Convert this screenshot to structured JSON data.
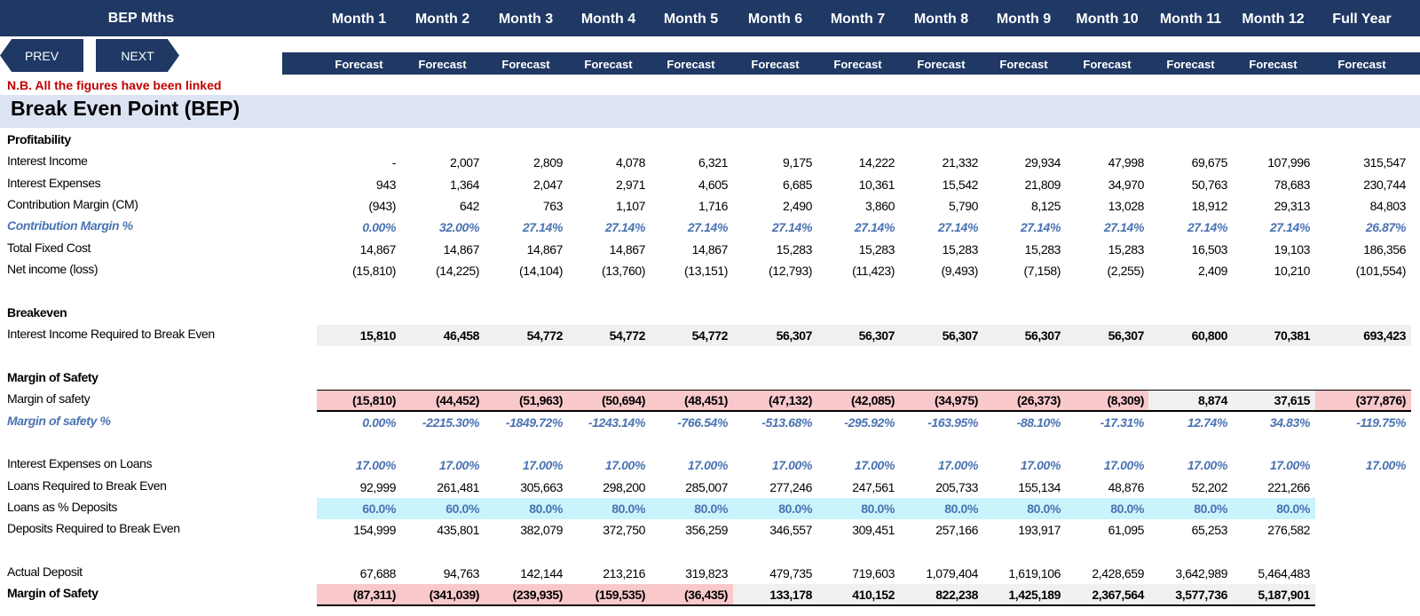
{
  "header": {
    "title": "BEP Mths",
    "months": [
      "Month 1",
      "Month 2",
      "Month 3",
      "Month 4",
      "Month 5",
      "Month 6",
      "Month 7",
      "Month 8",
      "Month 9",
      "Month 10",
      "Month 11",
      "Month 12",
      "Full Year"
    ],
    "subheader": [
      "Forecast",
      "Forecast",
      "Forecast",
      "Forecast",
      "Forecast",
      "Forecast",
      "Forecast",
      "Forecast",
      "Forecast",
      "Forecast",
      "Forecast",
      "Forecast",
      "Forecast"
    ]
  },
  "nav": {
    "prev": "PREV",
    "next": "NEXT"
  },
  "note": "N.B. All the figures have been linked",
  "section_title": "Break Even Point (BEP)",
  "colors": {
    "header_bg": "#1f3864",
    "band_bg": "#dce3f2",
    "pink": "#f8c8cb",
    "cyan": "#c9f4fb",
    "gray": "#f0f0f0",
    "blue_text": "#4a73b3",
    "note_red": "#c00000"
  },
  "rows": [
    {
      "label": "Profitability",
      "style": "bold",
      "values": []
    },
    {
      "label": "Interest Income",
      "values": [
        "-",
        "2,007",
        "2,809",
        "4,078",
        "6,321",
        "9,175",
        "14,222",
        "21,332",
        "29,934",
        "47,998",
        "69,675",
        "107,996",
        "315,547"
      ]
    },
    {
      "label": "Interest Expenses",
      "values": [
        "943",
        "1,364",
        "2,047",
        "2,971",
        "4,605",
        "6,685",
        "10,361",
        "15,542",
        "21,809",
        "34,970",
        "50,763",
        "78,683",
        "230,744"
      ]
    },
    {
      "label": "Contribution Margin (CM)",
      "values": [
        "(943)",
        "642",
        "763",
        "1,107",
        "1,716",
        "2,490",
        "3,860",
        "5,790",
        "8,125",
        "13,028",
        "18,912",
        "29,313",
        "84,803"
      ]
    },
    {
      "label": "Contribution Margin %",
      "style": "blue",
      "values": [
        "0.00%",
        "32.00%",
        "27.14%",
        "27.14%",
        "27.14%",
        "27.14%",
        "27.14%",
        "27.14%",
        "27.14%",
        "27.14%",
        "27.14%",
        "27.14%",
        "26.87%"
      ]
    },
    {
      "label": "Total Fixed Cost",
      "values": [
        "14,867",
        "14,867",
        "14,867",
        "14,867",
        "14,867",
        "15,283",
        "15,283",
        "15,283",
        "15,283",
        "15,283",
        "16,503",
        "19,103",
        "186,356"
      ]
    },
    {
      "label": "Net income (loss)",
      "values": [
        "(15,810)",
        "(14,225)",
        "(14,104)",
        "(13,760)",
        "(13,151)",
        "(12,793)",
        "(11,423)",
        "(9,493)",
        "(7,158)",
        "(2,255)",
        "2,409",
        "10,210",
        "(101,554)"
      ]
    },
    {
      "label": "",
      "values": []
    },
    {
      "label": "Breakeven",
      "style": "bold",
      "values": []
    },
    {
      "label": "Interest Income Required to Break Even",
      "cellstyle": "bold",
      "bg": "gray",
      "values": [
        "15,810",
        "46,458",
        "54,772",
        "54,772",
        "54,772",
        "56,307",
        "56,307",
        "56,307",
        "56,307",
        "56,307",
        "60,800",
        "70,381",
        "693,423"
      ]
    },
    {
      "label": "",
      "values": []
    },
    {
      "label": "Margin of Safety",
      "style": "bold",
      "values": []
    },
    {
      "label": "Margin of safety",
      "cellstyle": "bold",
      "bgs": [
        "pink",
        "pink",
        "pink",
        "pink",
        "pink",
        "pink",
        "pink",
        "pink",
        "pink",
        "pink",
        "gray",
        "gray",
        "pink"
      ],
      "topline": true,
      "bottomline": true,
      "values": [
        "(15,810)",
        "(44,452)",
        "(51,963)",
        "(50,694)",
        "(48,451)",
        "(47,132)",
        "(42,085)",
        "(34,975)",
        "(26,373)",
        "(8,309)",
        "8,874",
        "37,615",
        "(377,876)"
      ]
    },
    {
      "label": "Margin of safety %",
      "style": "blue",
      "values": [
        "0.00%",
        "-2215.30%",
        "-1849.72%",
        "-1243.14%",
        "-766.54%",
        "-513.68%",
        "-295.92%",
        "-163.95%",
        "-88.10%",
        "-17.31%",
        "12.74%",
        "34.83%",
        "-119.75%"
      ]
    },
    {
      "label": "",
      "values": []
    },
    {
      "label": "Interest Expenses on Loans",
      "cellstyle": "blue",
      "values": [
        "17.00%",
        "17.00%",
        "17.00%",
        "17.00%",
        "17.00%",
        "17.00%",
        "17.00%",
        "17.00%",
        "17.00%",
        "17.00%",
        "17.00%",
        "17.00%",
        "17.00%"
      ]
    },
    {
      "label": "Loans Required to Break Even",
      "values": [
        "92,999",
        "261,481",
        "305,663",
        "298,200",
        "285,007",
        "277,246",
        "247,561",
        "205,733",
        "155,134",
        "48,876",
        "52,202",
        "221,266",
        ""
      ]
    },
    {
      "label": "Loans as % Deposits",
      "cellstyle": "blue-plain",
      "bg": "cyan",
      "bgspan": 12,
      "values": [
        "60.0%",
        "60.0%",
        "80.0%",
        "80.0%",
        "80.0%",
        "80.0%",
        "80.0%",
        "80.0%",
        "80.0%",
        "80.0%",
        "80.0%",
        "80.0%",
        ""
      ]
    },
    {
      "label": "Deposits Required to Break Even",
      "values": [
        "154,999",
        "435,801",
        "382,079",
        "372,750",
        "356,259",
        "346,557",
        "309,451",
        "257,166",
        "193,917",
        "61,095",
        "65,253",
        "276,582",
        ""
      ]
    },
    {
      "label": "",
      "values": []
    },
    {
      "label": "Actual Deposit",
      "values": [
        "67,688",
        "94,763",
        "142,144",
        "213,216",
        "319,823",
        "479,735",
        "719,603",
        "1,079,404",
        "1,619,106",
        "2,428,659",
        "3,642,989",
        "5,464,483",
        ""
      ]
    },
    {
      "label": "Margin of Safety",
      "style": "bold",
      "cellstyle": "bold",
      "bgs": [
        "pink",
        "pink",
        "pink",
        "pink",
        "pink",
        "gray",
        "gray",
        "gray",
        "gray",
        "gray",
        "gray",
        "gray",
        ""
      ],
      "bottomline": true,
      "values": [
        "(87,311)",
        "(341,039)",
        "(239,935)",
        "(159,535)",
        "(36,435)",
        "133,178",
        "410,152",
        "822,238",
        "1,425,189",
        "2,367,564",
        "3,577,736",
        "5,187,901",
        ""
      ]
    }
  ]
}
